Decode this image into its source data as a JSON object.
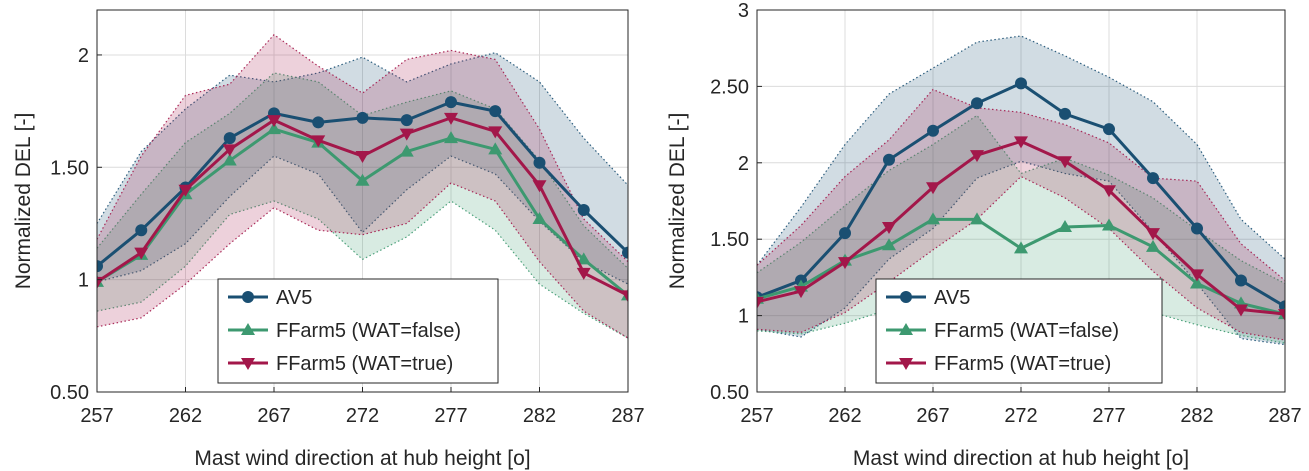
{
  "chart_data": [
    {
      "type": "line",
      "title": "",
      "xlabel": "Mast wind direction at hub height [o]",
      "ylabel": "Normalized DEL [-]",
      "xlim": [
        257,
        287
      ],
      "ylim": [
        0.5,
        2.2
      ],
      "xticks": [
        257,
        262,
        267,
        272,
        277,
        282,
        287
      ],
      "xtick_labels": [
        "257",
        "262",
        "267",
        "272",
        "277",
        "282",
        "287"
      ],
      "yticks": [
        0.5,
        1,
        1.5,
        2
      ],
      "ytick_labels": [
        "0.50",
        "1",
        "1.50",
        "2"
      ],
      "grid": true,
      "legend_position": "bottom-center",
      "x": [
        257,
        259.5,
        262,
        264.5,
        267,
        269.5,
        272,
        274.5,
        277,
        279.5,
        282,
        284.5,
        287
      ],
      "series": [
        {
          "name": "AV5",
          "color": "#1a4f72",
          "marker": "circle",
          "values": [
            1.06,
            1.22,
            1.41,
            1.63,
            1.74,
            1.7,
            1.72,
            1.71,
            1.79,
            1.75,
            1.52,
            1.31,
            1.12
          ],
          "band_upper": [
            1.25,
            1.57,
            1.76,
            1.91,
            1.88,
            1.92,
            1.99,
            1.88,
            1.96,
            2.01,
            1.88,
            1.63,
            1.42
          ],
          "band_lower": [
            0.99,
            1.04,
            1.16,
            1.37,
            1.55,
            1.47,
            1.21,
            1.4,
            1.55,
            1.47,
            1.26,
            1.08,
            0.98
          ]
        },
        {
          "name": "FFarm5 (WAT=false)",
          "color": "#3d9970",
          "marker": "triangle-up",
          "values": [
            0.99,
            1.11,
            1.38,
            1.53,
            1.67,
            1.61,
            1.44,
            1.57,
            1.63,
            1.58,
            1.27,
            1.09,
            0.93
          ],
          "band_upper": [
            1.14,
            1.38,
            1.61,
            1.74,
            1.92,
            1.88,
            1.73,
            1.79,
            1.84,
            1.76,
            1.53,
            1.24,
            1.05
          ],
          "band_lower": [
            0.86,
            0.9,
            1.06,
            1.29,
            1.35,
            1.27,
            1.09,
            1.19,
            1.35,
            1.22,
            0.98,
            0.85,
            0.74
          ]
        },
        {
          "name": "FFarm5 (WAT=true)",
          "color": "#a3174a",
          "marker": "triangle-down",
          "values": [
            0.99,
            1.12,
            1.4,
            1.58,
            1.71,
            1.62,
            1.55,
            1.65,
            1.72,
            1.66,
            1.42,
            1.03,
            0.93
          ],
          "band_upper": [
            1.18,
            1.55,
            1.82,
            1.87,
            2.09,
            1.95,
            1.83,
            1.98,
            2.02,
            1.98,
            1.67,
            1.27,
            1.08
          ],
          "band_lower": [
            0.79,
            0.83,
            0.98,
            1.16,
            1.32,
            1.22,
            1.2,
            1.25,
            1.43,
            1.35,
            1.08,
            0.86,
            0.74
          ]
        }
      ]
    },
    {
      "type": "line",
      "title": "",
      "xlabel": "Mast wind direction at hub height [o]",
      "ylabel": "Normalized DEL [-]",
      "xlim": [
        257,
        287
      ],
      "ylim": [
        0.5,
        3
      ],
      "xticks": [
        257,
        262,
        267,
        272,
        277,
        282,
        287
      ],
      "xtick_labels": [
        "257",
        "262",
        "267",
        "272",
        "277",
        "282",
        "287"
      ],
      "yticks": [
        0.5,
        1,
        1.5,
        2,
        2.5,
        3
      ],
      "ytick_labels": [
        "0.50",
        "1",
        "1.50",
        "2",
        "2.50",
        "3"
      ],
      "grid": true,
      "legend_position": "bottom-center",
      "x": [
        257,
        259.5,
        262,
        264.5,
        267,
        269.5,
        272,
        274.5,
        277,
        279.5,
        282,
        284.5,
        287
      ],
      "series": [
        {
          "name": "AV5",
          "color": "#1a4f72",
          "marker": "circle",
          "values": [
            1.12,
            1.23,
            1.54,
            2.02,
            2.21,
            2.39,
            2.52,
            2.32,
            2.22,
            1.9,
            1.57,
            1.23,
            1.06
          ],
          "band_upper": [
            1.33,
            1.71,
            2.12,
            2.45,
            2.62,
            2.79,
            2.83,
            2.7,
            2.56,
            2.4,
            2.12,
            1.63,
            1.37
          ],
          "band_lower": [
            0.91,
            0.86,
            1.05,
            1.37,
            1.57,
            1.9,
            2.01,
            1.93,
            1.88,
            1.55,
            1.21,
            0.85,
            0.81
          ]
        },
        {
          "name": "FFarm5 (WAT=false)",
          "color": "#3d9970",
          "marker": "triangle-up",
          "values": [
            1.11,
            1.19,
            1.36,
            1.46,
            1.63,
            1.63,
            1.44,
            1.58,
            1.59,
            1.45,
            1.21,
            1.08,
            1.01
          ],
          "band_upper": [
            1.28,
            1.48,
            1.72,
            1.95,
            2.12,
            2.31,
            1.93,
            2.03,
            1.92,
            1.77,
            1.56,
            1.36,
            1.21
          ],
          "band_lower": [
            0.9,
            0.88,
            0.95,
            1.04,
            1.1,
            1.14,
            1.15,
            1.14,
            1.09,
            1.02,
            0.94,
            0.87,
            0.82
          ]
        },
        {
          "name": "FFarm5 (WAT=true)",
          "color": "#a3174a",
          "marker": "triangle-down",
          "values": [
            1.09,
            1.16,
            1.35,
            1.58,
            1.84,
            2.05,
            2.14,
            2.01,
            1.82,
            1.54,
            1.27,
            1.04,
            1.01
          ],
          "band_upper": [
            1.33,
            1.59,
            1.91,
            2.15,
            2.48,
            2.36,
            2.33,
            2.25,
            2.13,
            1.9,
            1.88,
            1.47,
            1.23
          ],
          "band_lower": [
            0.91,
            0.89,
            1.02,
            1.22,
            1.43,
            1.63,
            1.91,
            1.77,
            1.57,
            1.29,
            1.05,
            0.89,
            0.84
          ]
        }
      ]
    }
  ]
}
